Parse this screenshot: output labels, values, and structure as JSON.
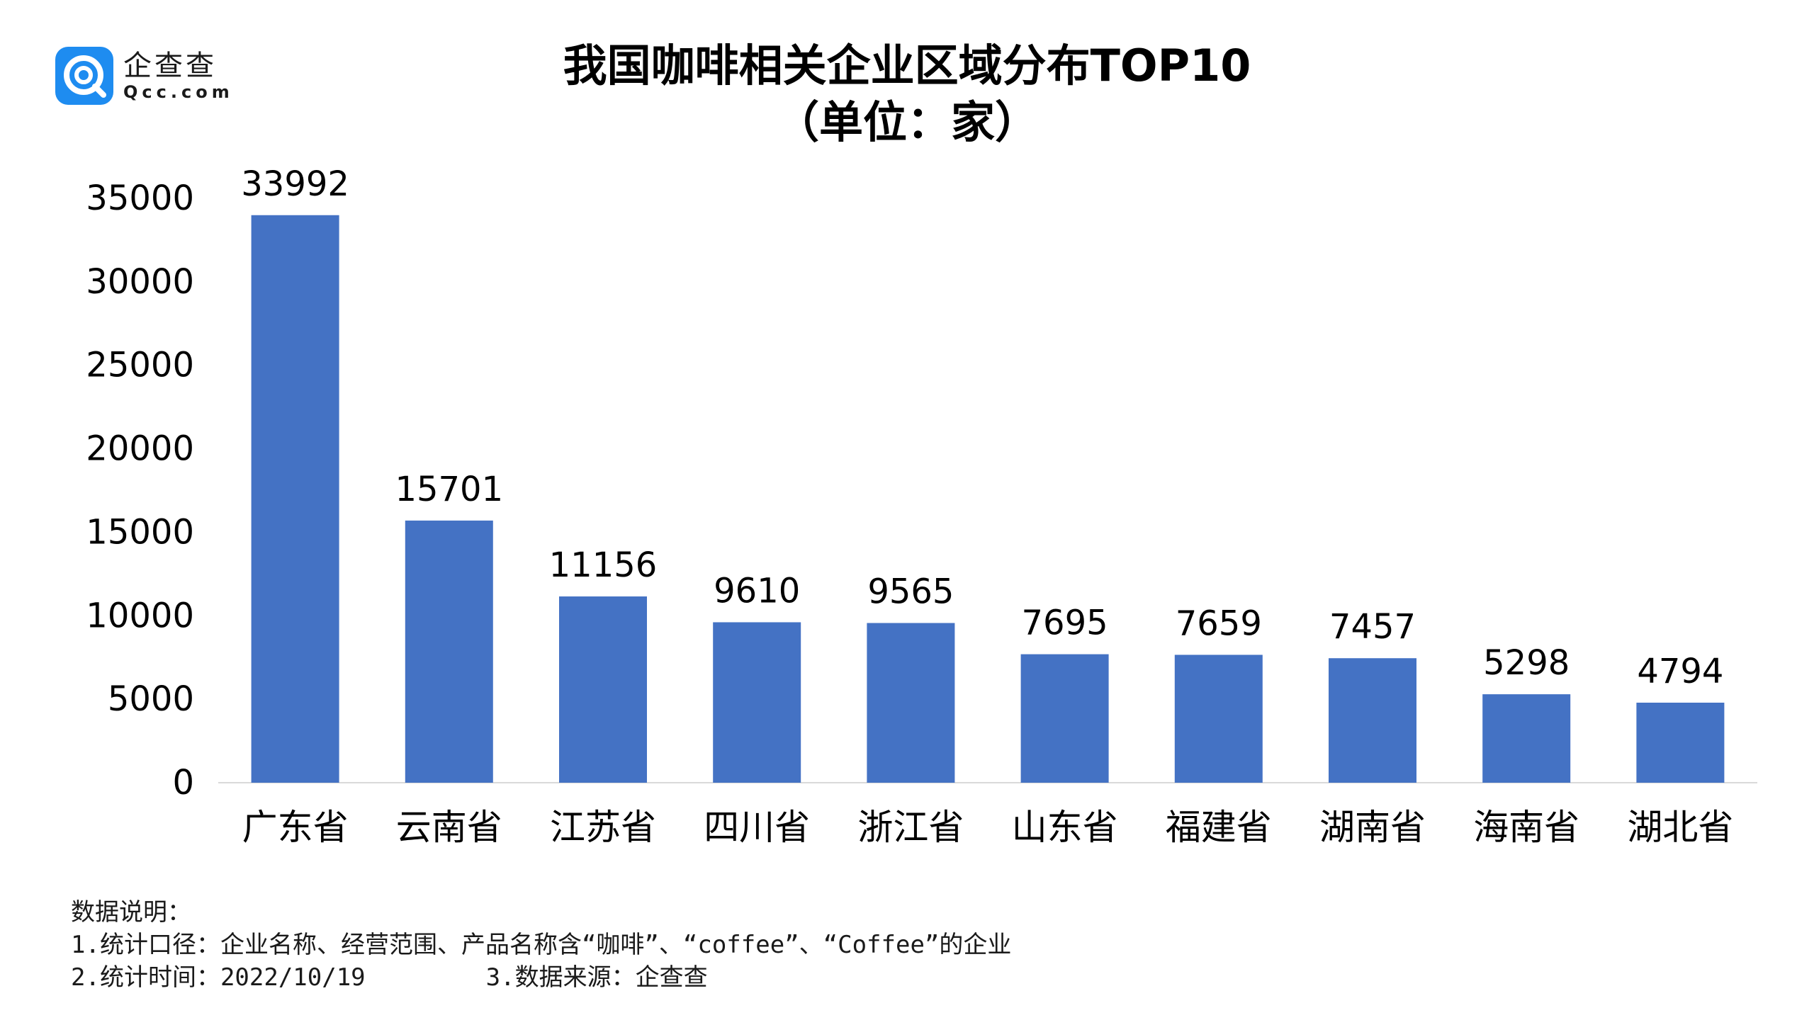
{
  "logo": {
    "name_cn": "企查查",
    "name_en": "Qcc.com"
  },
  "notes": {
    "heading": "数据说明：",
    "line1": "1.统计口径：企业名称、经营范围、产品名称含“咖啡”、“coffee”、“Coffee”的企业",
    "line2a": "2.统计时间：2022/10/19",
    "line2b": "3.数据来源：企查查"
  },
  "chart_data": {
    "type": "bar",
    "title": "我国咖啡相关企业区域分布TOP10",
    "subtitle": "（单位：家）",
    "categories": [
      "广东省",
      "云南省",
      "江苏省",
      "四川省",
      "浙江省",
      "山东省",
      "福建省",
      "湖南省",
      "海南省",
      "湖北省"
    ],
    "values": [
      33992,
      15701,
      11156,
      9610,
      9565,
      7695,
      7659,
      7457,
      5298,
      4794
    ],
    "ylim": [
      0,
      35000
    ],
    "yticks": [
      0,
      5000,
      10000,
      15000,
      20000,
      25000,
      30000,
      35000
    ],
    "grid": false,
    "legend": "none",
    "bar_color": "#4472c4"
  }
}
